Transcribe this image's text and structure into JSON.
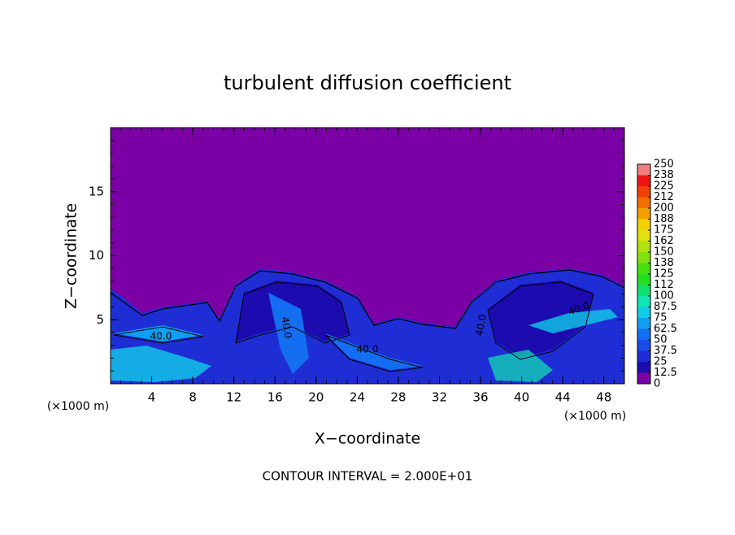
{
  "chart_data": {
    "type": "heatmap",
    "title": "turbulent diffusion coefficient",
    "x_label": "X−coordinate",
    "y_label": "Z−coordinate",
    "x_unit": "(×1000 m)",
    "x_unit_right": "(×1000 m)",
    "footnote": "CONTOUR INTERVAL = 2.000E+01",
    "xlim": [
      0,
      50
    ],
    "xticks": [
      4,
      8,
      12,
      16,
      20,
      24,
      28,
      32,
      36,
      40,
      44,
      48
    ],
    "ylim": [
      0,
      20
    ],
    "yticks": [
      5,
      10,
      15
    ],
    "contour_labels": [
      "40.0",
      "40.0",
      "40.0",
      "40.0",
      "40.0"
    ],
    "colorbar": {
      "levels": [
        0,
        12.5,
        25,
        37.5,
        50,
        62.5,
        75,
        87.5,
        100,
        {
          "value": 112.5,
          "label": "112"
        },
        125,
        {
          "value": 137.5,
          "label": "138"
        },
        150,
        {
          "value": 162.5,
          "label": "162"
        },
        175,
        {
          "value": 187.5,
          "label": "188"
        },
        200,
        {
          "value": 212.5,
          "label": "212"
        },
        225,
        {
          "value": 237.5,
          "label": "238"
        },
        250
      ],
      "colors": [
        "#7a00a6",
        "#1c0cb0",
        "#1f2ed4",
        "#1a4ce8",
        "#136ef2",
        "#0f9ef2",
        "#10cce8",
        "#10e6b4",
        "#12e070",
        "#24e020",
        "#48e010",
        "#84e010",
        "#b4e010",
        "#e2e010",
        "#f2d000",
        "#f2a000",
        "#f27000",
        "#f24000",
        "#f01414",
        "#f08080"
      ]
    }
  }
}
